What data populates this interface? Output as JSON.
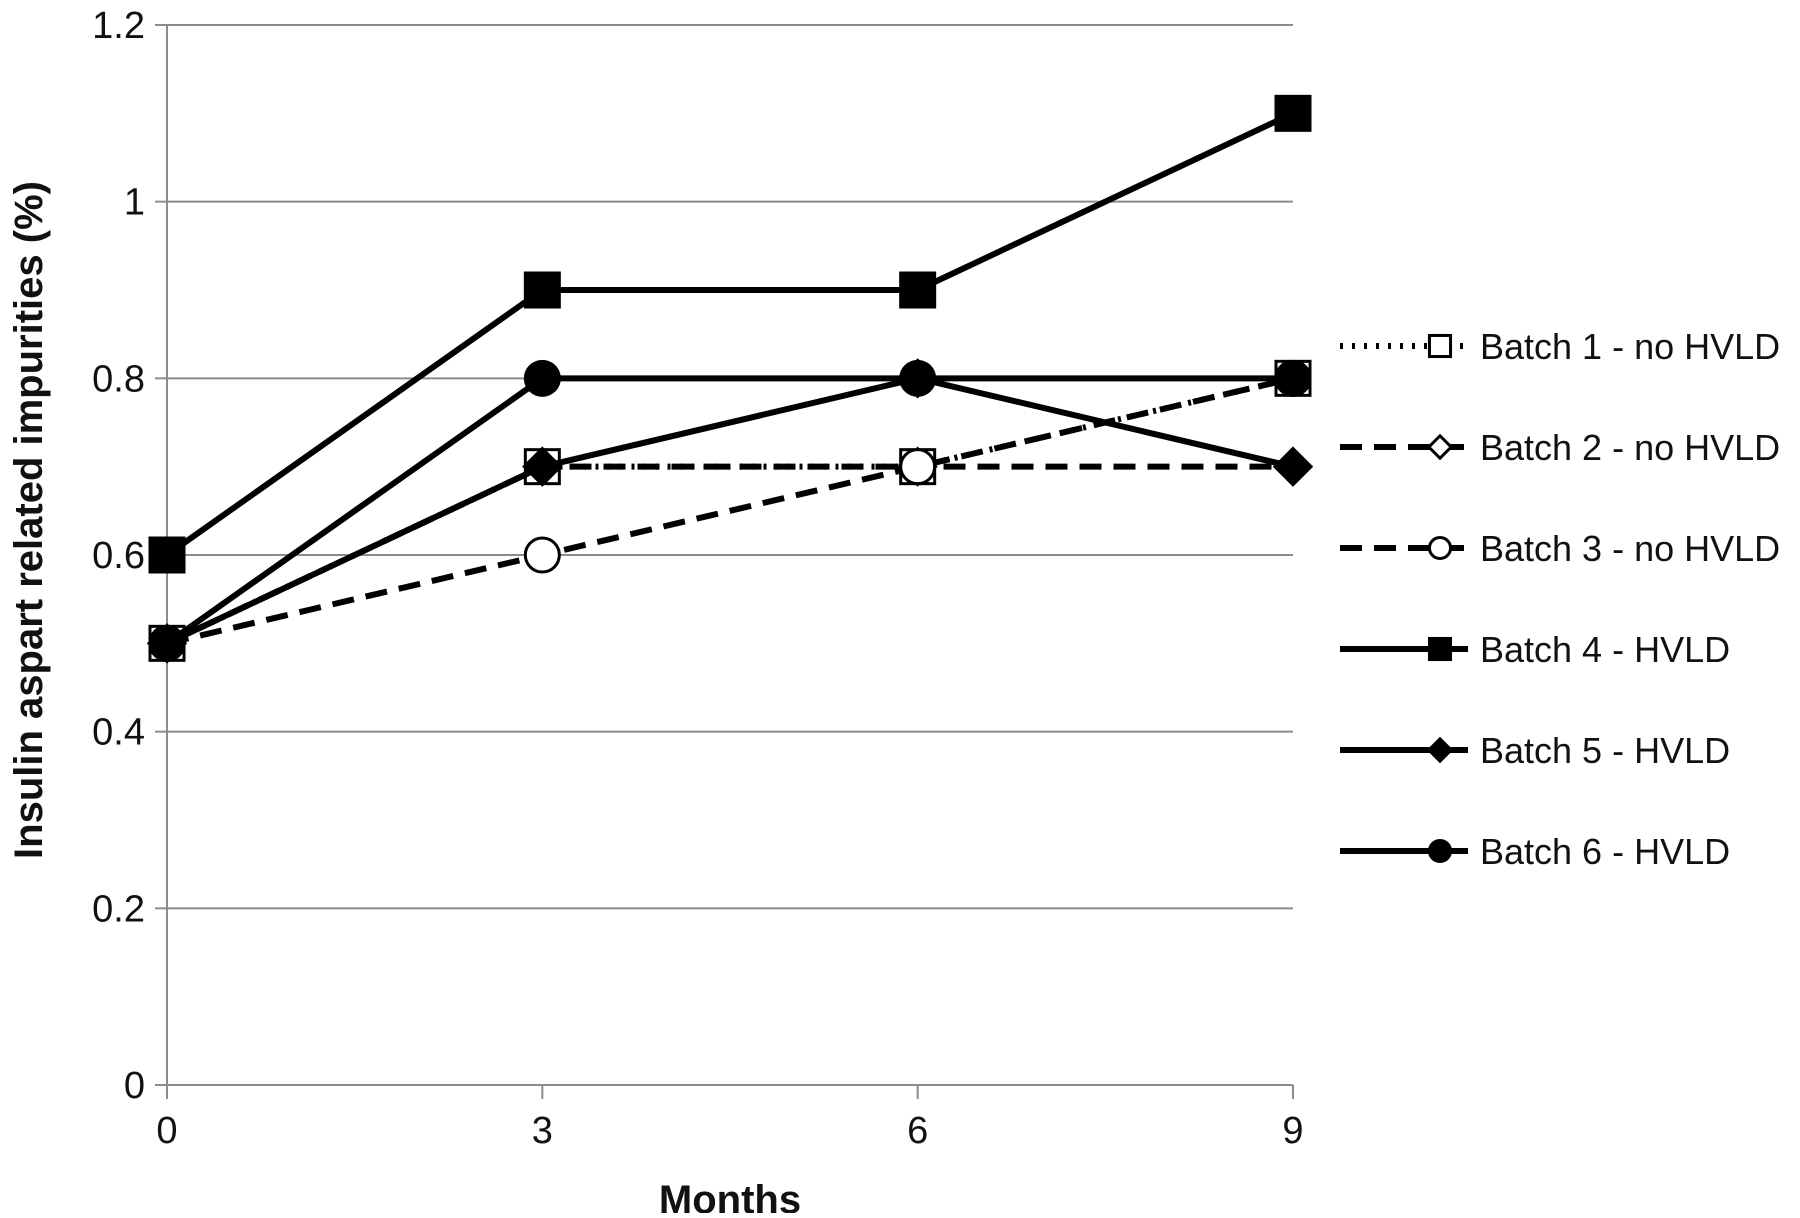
{
  "chart_data": {
    "type": "line",
    "title": "",
    "xlabel": "Months",
    "ylabel": "Insulin aspart related impurities (%)",
    "x": [
      0,
      3,
      6,
      9
    ],
    "x_tick_labels": [
      "0",
      "3",
      "6",
      "9"
    ],
    "ylim": [
      0,
      1.2
    ],
    "y_tick_labels": [
      "0",
      "0.2",
      "0.4",
      "0.6",
      "0.8",
      "1",
      "1.2"
    ],
    "grid": "horizontal",
    "legend_position": "right",
    "line_color": "#000000",
    "series": [
      {
        "name": "Batch 1 - no HVLD",
        "values": [
          0.5,
          0.7,
          0.7,
          0.8
        ],
        "line_style": "dotted",
        "marker": "square-open"
      },
      {
        "name": "Batch 2 - no HVLD",
        "values": [
          0.5,
          0.7,
          0.7,
          0.7
        ],
        "line_style": "dashed",
        "marker": "diamond-open"
      },
      {
        "name": "Batch 3 - no HVLD",
        "values": [
          0.5,
          0.6,
          0.7,
          0.8
        ],
        "line_style": "dashed",
        "marker": "circle-open"
      },
      {
        "name": "Batch 4  - HVLD",
        "values": [
          0.6,
          0.9,
          0.9,
          1.1
        ],
        "line_style": "solid",
        "marker": "square-filled"
      },
      {
        "name": "Batch 5 - HVLD",
        "values": [
          0.5,
          0.7,
          0.8,
          0.7
        ],
        "line_style": "solid",
        "marker": "diamond-filled"
      },
      {
        "name": "Batch 6  - HVLD",
        "values": [
          0.5,
          0.8,
          0.8,
          0.8
        ],
        "line_style": "solid",
        "marker": "circle-filled"
      }
    ]
  }
}
